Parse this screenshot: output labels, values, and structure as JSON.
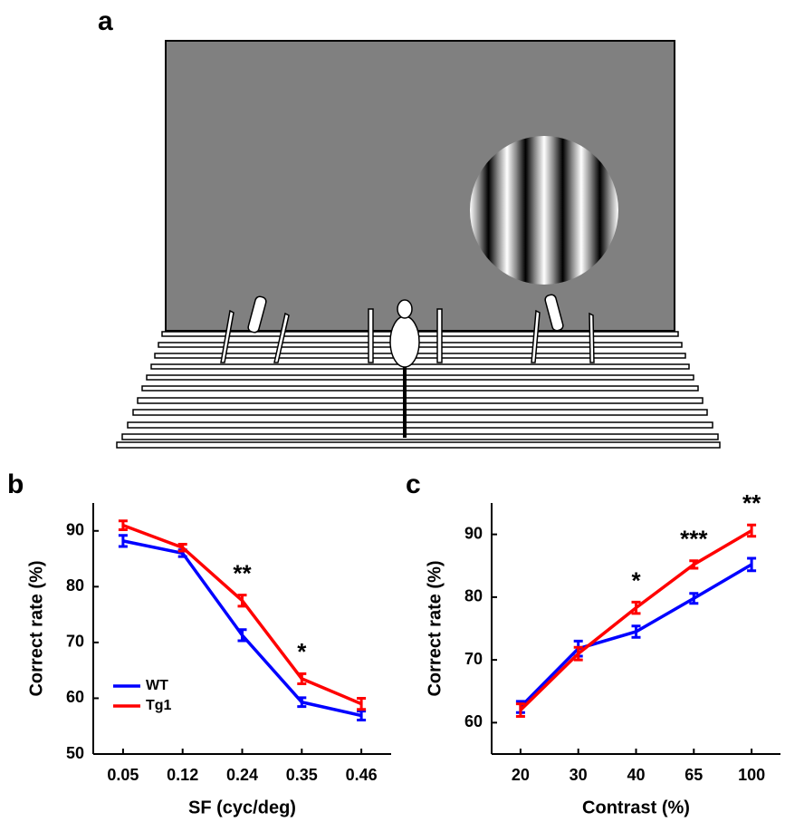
{
  "panel_labels": [
    "a",
    "b",
    "c"
  ],
  "chart_data": [
    {
      "type": "line",
      "xlabel": "SF (cyc/deg)",
      "ylabel": "Correct rate (%)",
      "categories": [
        "0.05",
        "0.12",
        "0.24",
        "0.35",
        "0.46"
      ],
      "series": [
        {
          "name": "WT",
          "color": "#0000ff",
          "values": [
            88.2,
            86,
            71.3,
            59.3,
            56.9
          ],
          "errors": [
            1,
            0.6,
            1,
            0.8,
            0.8
          ]
        },
        {
          "name": "Tg1",
          "color": "#ff0000",
          "values": [
            91,
            87,
            77.5,
            63.5,
            59
          ],
          "errors": [
            0.8,
            0.6,
            1,
            0.9,
            1
          ]
        }
      ],
      "ylim": [
        50,
        95
      ],
      "yticks": [
        50,
        60,
        70,
        80,
        90
      ],
      "legend": "lower left",
      "annotations": [
        {
          "text": "**",
          "x": "0.24"
        },
        {
          "text": "*",
          "x": "0.35"
        }
      ]
    },
    {
      "type": "line",
      "xlabel": "Contrast (%)",
      "ylabel": "Correct rate (%)",
      "categories": [
        "20",
        "30",
        "40",
        "65",
        "100"
      ],
      "series": [
        {
          "name": "WT",
          "color": "#0000ff",
          "values": [
            62.5,
            71.8,
            74.5,
            79.8,
            85.2
          ],
          "errors": [
            0.9,
            1.2,
            0.9,
            0.8,
            1
          ]
        },
        {
          "name": "Tg1",
          "color": "#ff0000",
          "values": [
            62,
            71,
            78.3,
            85.2,
            90.6
          ],
          "errors": [
            1,
            1,
            0.9,
            0.6,
            0.9
          ]
        }
      ],
      "ylim": [
        55,
        95
      ],
      "yticks": [
        60,
        70,
        80,
        90
      ],
      "annotations": [
        {
          "text": "*",
          "x": "40"
        },
        {
          "text": "***",
          "x": "65"
        },
        {
          "text": "**",
          "x": "100"
        }
      ]
    }
  ]
}
